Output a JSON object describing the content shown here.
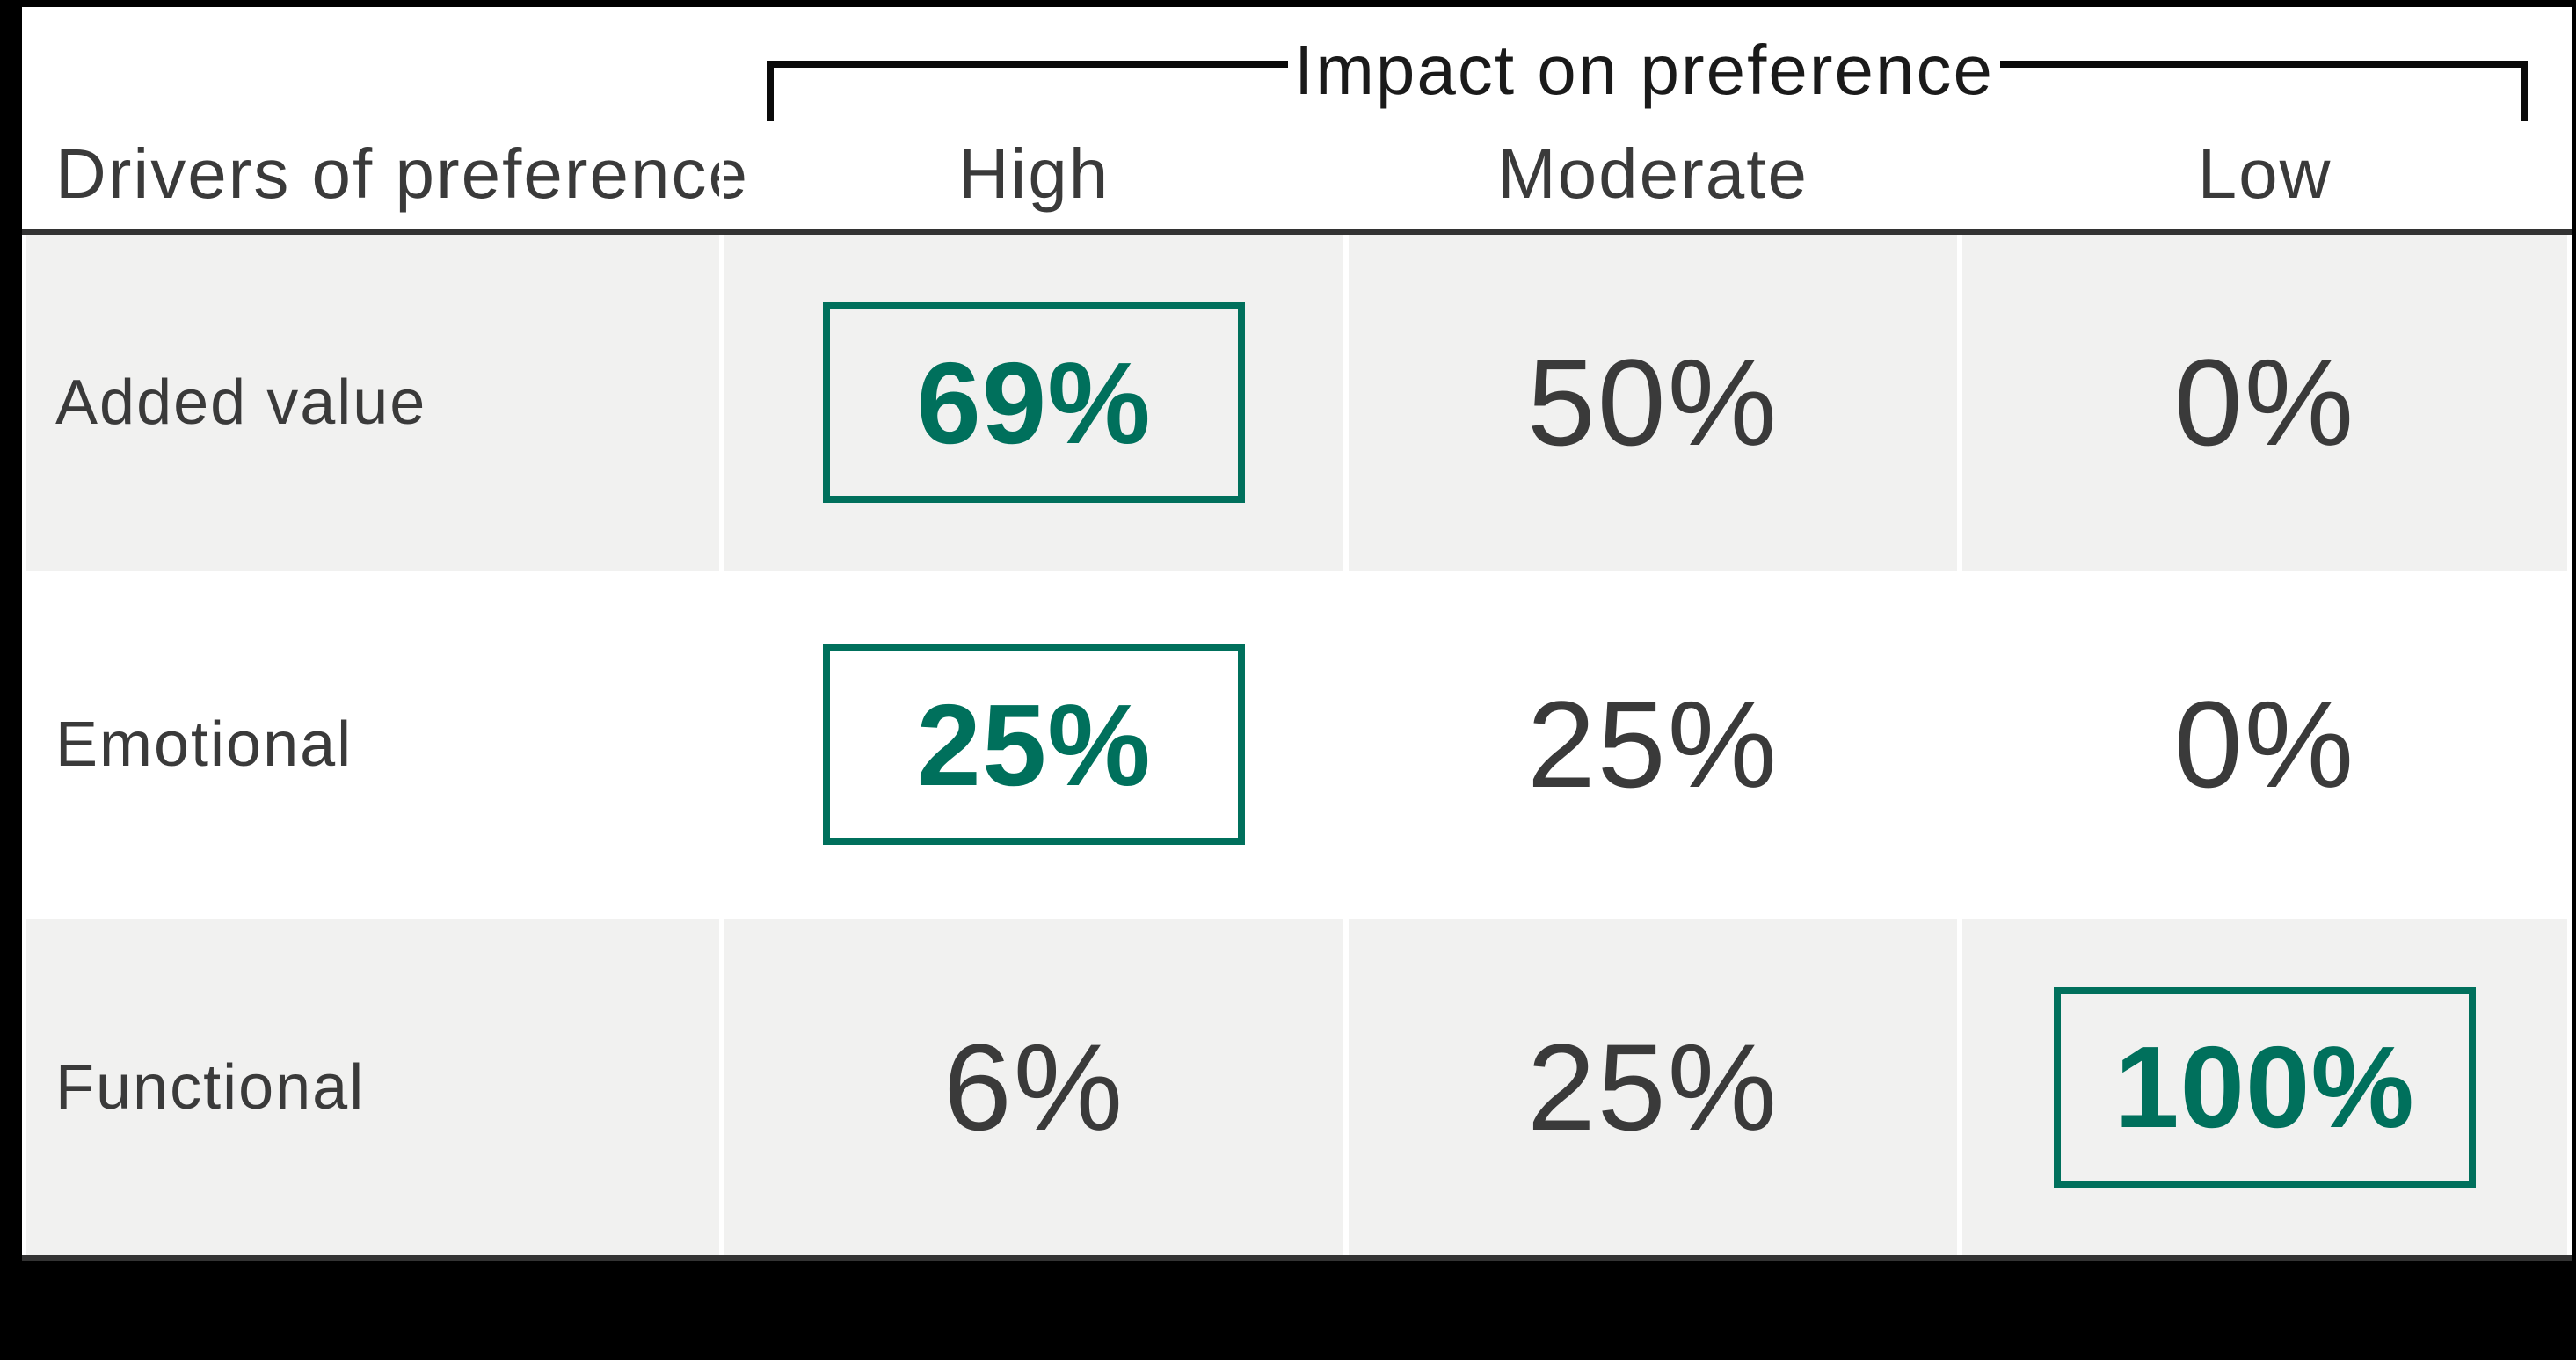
{
  "chart_data": {
    "type": "table",
    "title": "Impact on preference",
    "row_header_label": "Drivers of preference",
    "columns": [
      "High",
      "Moderate",
      "Low"
    ],
    "rows": [
      {
        "label": "Added value",
        "values": [
          "69%",
          "50%",
          "0%"
        ],
        "highlighted_column": "High"
      },
      {
        "label": "Emotional",
        "values": [
          "25%",
          "25%",
          "0%"
        ],
        "highlighted_column": "High"
      },
      {
        "label": "Functional",
        "values": [
          "6%",
          "25%",
          "100%"
        ],
        "highlighted_column": "Low"
      }
    ],
    "highlight_style": "green outlined box with bold green value",
    "layout_hints": {
      "bracket": "square bracket over High/Moderate/Low columns with title centered in the line",
      "row_striping": [
        "gray",
        "white",
        "gray"
      ]
    },
    "colors": {
      "background": "#000000",
      "card": "#FFFFFF",
      "row_gray": "#F1F1F0",
      "text_dark": "#3A3A3A",
      "title_black": "#1A1A1A",
      "border_dark": "#333333",
      "highlight_green": "#00705C"
    }
  }
}
